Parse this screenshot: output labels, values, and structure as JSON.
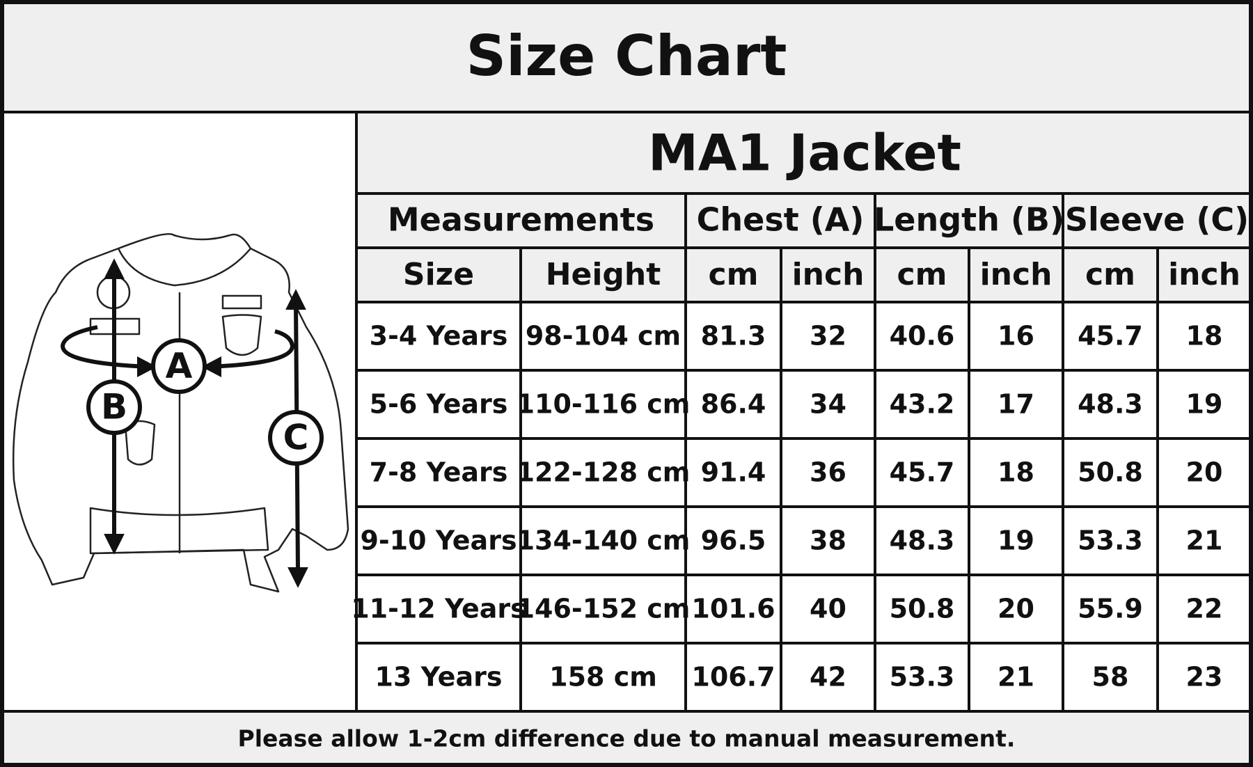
{
  "header": {
    "title": "Size Chart"
  },
  "diagram": {
    "labels": [
      "A",
      "B",
      "C"
    ]
  },
  "table": {
    "title": "MA1 Jacket",
    "groups": [
      "Measurements",
      "Chest (A)",
      "Length (B)",
      "Sleeve (C)"
    ],
    "columns": [
      "Size",
      "Height",
      "cm",
      "inch",
      "cm",
      "inch",
      "cm",
      "inch"
    ],
    "rows": [
      [
        "3-4 Years",
        "98-104 cm",
        "81.3",
        "32",
        "40.6",
        "16",
        "45.7",
        "18"
      ],
      [
        "5-6 Years",
        "110-116 cm",
        "86.4",
        "34",
        "43.2",
        "17",
        "48.3",
        "19"
      ],
      [
        "7-8 Years",
        "122-128 cm",
        "91.4",
        "36",
        "45.7",
        "18",
        "50.8",
        "20"
      ],
      [
        "9-10 Years",
        "134-140 cm",
        "96.5",
        "38",
        "48.3",
        "19",
        "53.3",
        "21"
      ],
      [
        "11-12 Years",
        "146-152 cm",
        "101.6",
        "40",
        "50.8",
        "20",
        "55.9",
        "22"
      ],
      [
        "13 Years",
        "158 cm",
        "106.7",
        "42",
        "53.3",
        "21",
        "58",
        "23"
      ]
    ]
  },
  "footer": {
    "note": "Please allow 1-2cm difference due to manual measurement."
  }
}
